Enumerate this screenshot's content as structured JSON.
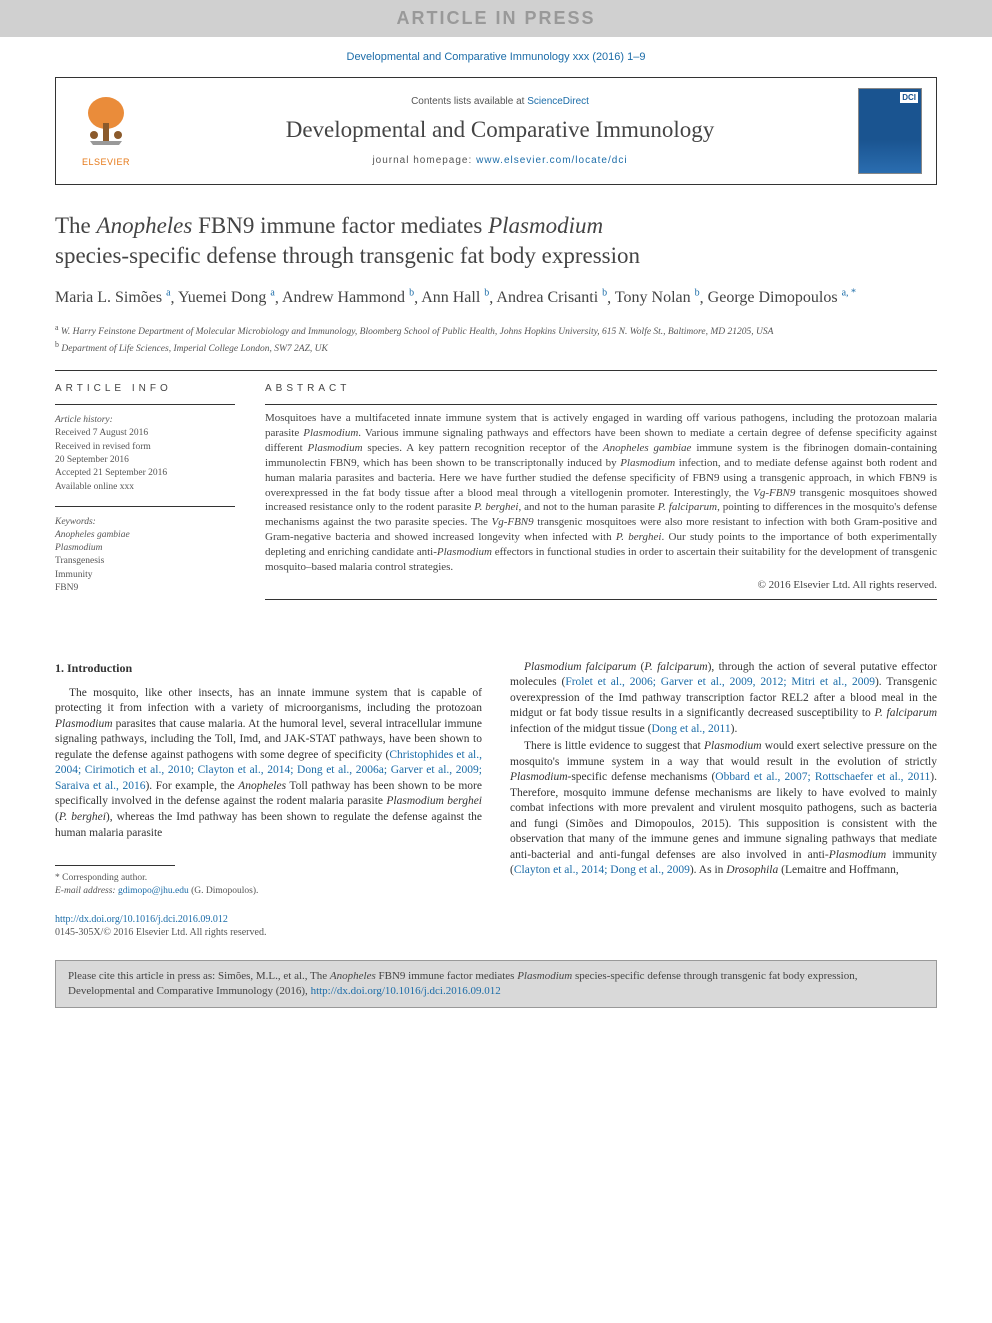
{
  "banner": {
    "text": "ARTICLE IN PRESS"
  },
  "journalRef": "Developmental and Comparative Immunology xxx (2016) 1–9",
  "header": {
    "elsevier": "ELSEVIER",
    "contentsPrefix": "Contents lists available at ",
    "contentsLink": "ScienceDirect",
    "journalName": "Developmental and Comparative Immunology",
    "homepagePrefix": "journal homepage: ",
    "homepageUrl": "www.elsevier.com/locate/dci",
    "coverBadge": "DCI"
  },
  "title": {
    "line1_pre": "The ",
    "line1_it1": "Anopheles",
    "line1_mid": " FBN9 immune factor mediates ",
    "line1_it2": "Plasmodium",
    "line2": "species-specific defense through transgenic fat body expression"
  },
  "authors": [
    {
      "name": "Maria L. Simões",
      "sup": "a"
    },
    {
      "name": "Yuemei Dong",
      "sup": "a"
    },
    {
      "name": "Andrew Hammond",
      "sup": "b"
    },
    {
      "name": "Ann Hall",
      "sup": "b"
    },
    {
      "name": "Andrea Crisanti",
      "sup": "b"
    },
    {
      "name": "Tony Nolan",
      "sup": "b"
    },
    {
      "name": "George Dimopoulos",
      "sup": "a, *"
    }
  ],
  "affiliations": [
    {
      "sup": "a",
      "text": "W. Harry Feinstone Department of Molecular Microbiology and Immunology, Bloomberg School of Public Health, Johns Hopkins University, 615 N. Wolfe St., Baltimore, MD 21205, USA"
    },
    {
      "sup": "b",
      "text": "Department of Life Sciences, Imperial College London, SW7 2AZ, UK"
    }
  ],
  "articleInfo": {
    "heading": "ARTICLE INFO",
    "historyHead": "Article history:",
    "history": [
      "Received 7 August 2016",
      "Received in revised form",
      "20 September 2016",
      "Accepted 21 September 2016",
      "Available online xxx"
    ],
    "keywordsHead": "Keywords:",
    "keywords": [
      "Anopheles gambiae",
      "Plasmodium",
      "Transgenesis",
      "Immunity",
      "FBN9"
    ]
  },
  "abstract": {
    "heading": "ABSTRACT",
    "text": "Mosquitoes have a multifaceted innate immune system that is actively engaged in warding off various pathogens, including the protozoan malaria parasite Plasmodium. Various immune signaling pathways and effectors have been shown to mediate a certain degree of defense specificity against different Plasmodium species. A key pattern recognition receptor of the Anopheles gambiae immune system is the fibrinogen domain-containing immunolectin FBN9, which has been shown to be transcriptonally induced by Plasmodium infection, and to mediate defense against both rodent and human malaria parasites and bacteria. Here we have further studied the defense specificity of FBN9 using a transgenic approach, in which FBN9 is overexpressed in the fat body tissue after a blood meal through a vitellogenin promoter. Interestingly, the Vg-FBN9 transgenic mosquitoes showed increased resistance only to the rodent parasite P. berghei, and not to the human parasite P. falciparum, pointing to differences in the mosquito's defense mechanisms against the two parasite species. The Vg-FBN9 transgenic mosquitoes were also more resistant to infection with both Gram-positive and Gram-negative bacteria and showed increased longevity when infected with P. berghei. Our study points to the importance of both experimentally depleting and enriching candidate anti-Plasmodium effectors in functional studies in order to ascertain their suitability for the development of transgenic mosquito–based malaria control strategies.",
    "copyright": "© 2016 Elsevier Ltd. All rights reserved."
  },
  "body": {
    "sectionHead": "1. Introduction",
    "leftParagraphs": [
      "The mosquito, like other insects, has an innate immune system that is capable of protecting it from infection with a variety of microorganisms, including the protozoan Plasmodium parasites that cause malaria. At the humoral level, several intracellular immune signaling pathways, including the Toll, Imd, and JAK-STAT pathways, have been shown to regulate the defense against pathogens with some degree of specificity (Christophides et al., 2004; Cirimotich et al., 2010; Clayton et al., 2014; Dong et al., 2006a; Garver et al., 2009; Saraiva et al., 2016). For example, the Anopheles Toll pathway has been shown to be more specifically involved in the defense against the rodent malaria parasite Plasmodium berghei (P. berghei), whereas the Imd pathway has been shown to regulate the defense against the human malaria parasite"
    ],
    "rightParagraphs": [
      "Plasmodium falciparum (P. falciparum), through the action of several putative effector molecules (Frolet et al., 2006; Garver et al., 2009, 2012; Mitri et al., 2009). Transgenic overexpression of the Imd pathway transcription factor REL2 after a blood meal in the midgut or fat body tissue results in a significantly decreased susceptibility to P. falciparum infection of the midgut tissue (Dong et al., 2011).",
      "There is little evidence to suggest that Plasmodium would exert selective pressure on the mosquito's immune system in a way that would result in the evolution of strictly Plasmodium-specific defense mechanisms (Obbard et al., 2007; Rottschaefer et al., 2011). Therefore, mosquito immune defense mechanisms are likely to have evolved to mainly combat infections with more prevalent and virulent mosquito pathogens, such as bacteria and fungi (Simões and Dimopoulos, 2015). This supposition is consistent with the observation that many of the immune genes and immune signaling pathways that mediate anti-bacterial and anti-fungal defenses are also involved in anti-Plasmodium immunity (Clayton et al., 2014; Dong et al., 2009). As in Drosophila (Lemaitre and Hoffmann,"
    ]
  },
  "footnotes": {
    "corresponding": "* Corresponding author.",
    "emailLabel": "E-mail address: ",
    "email": "gdimopo@jhu.edu",
    "emailSuffix": " (G. Dimopoulos)."
  },
  "doi": {
    "url": "http://dx.doi.org/10.1016/j.dci.2016.09.012",
    "issn": "0145-305X/© 2016 Elsevier Ltd. All rights reserved."
  },
  "citeBox": {
    "prefix": "Please cite this article in press as: Simões, M.L., et al., The ",
    "it1": "Anopheles",
    "mid1": " FBN9 immune factor mediates ",
    "it2": "Plasmodium",
    "mid2": " species-specific defense through transgenic fat body expression, Developmental and Comparative Immunology (2016), ",
    "url": "http://dx.doi.org/10.1016/j.dci.2016.09.012"
  },
  "colors": {
    "link": "#1b6ca8",
    "bannerBg": "#d0d0d0",
    "bannerText": "#999999",
    "elsevierOrange": "#e67817",
    "coverBg": "#1a5490",
    "citeBg": "#d9d9d9"
  }
}
